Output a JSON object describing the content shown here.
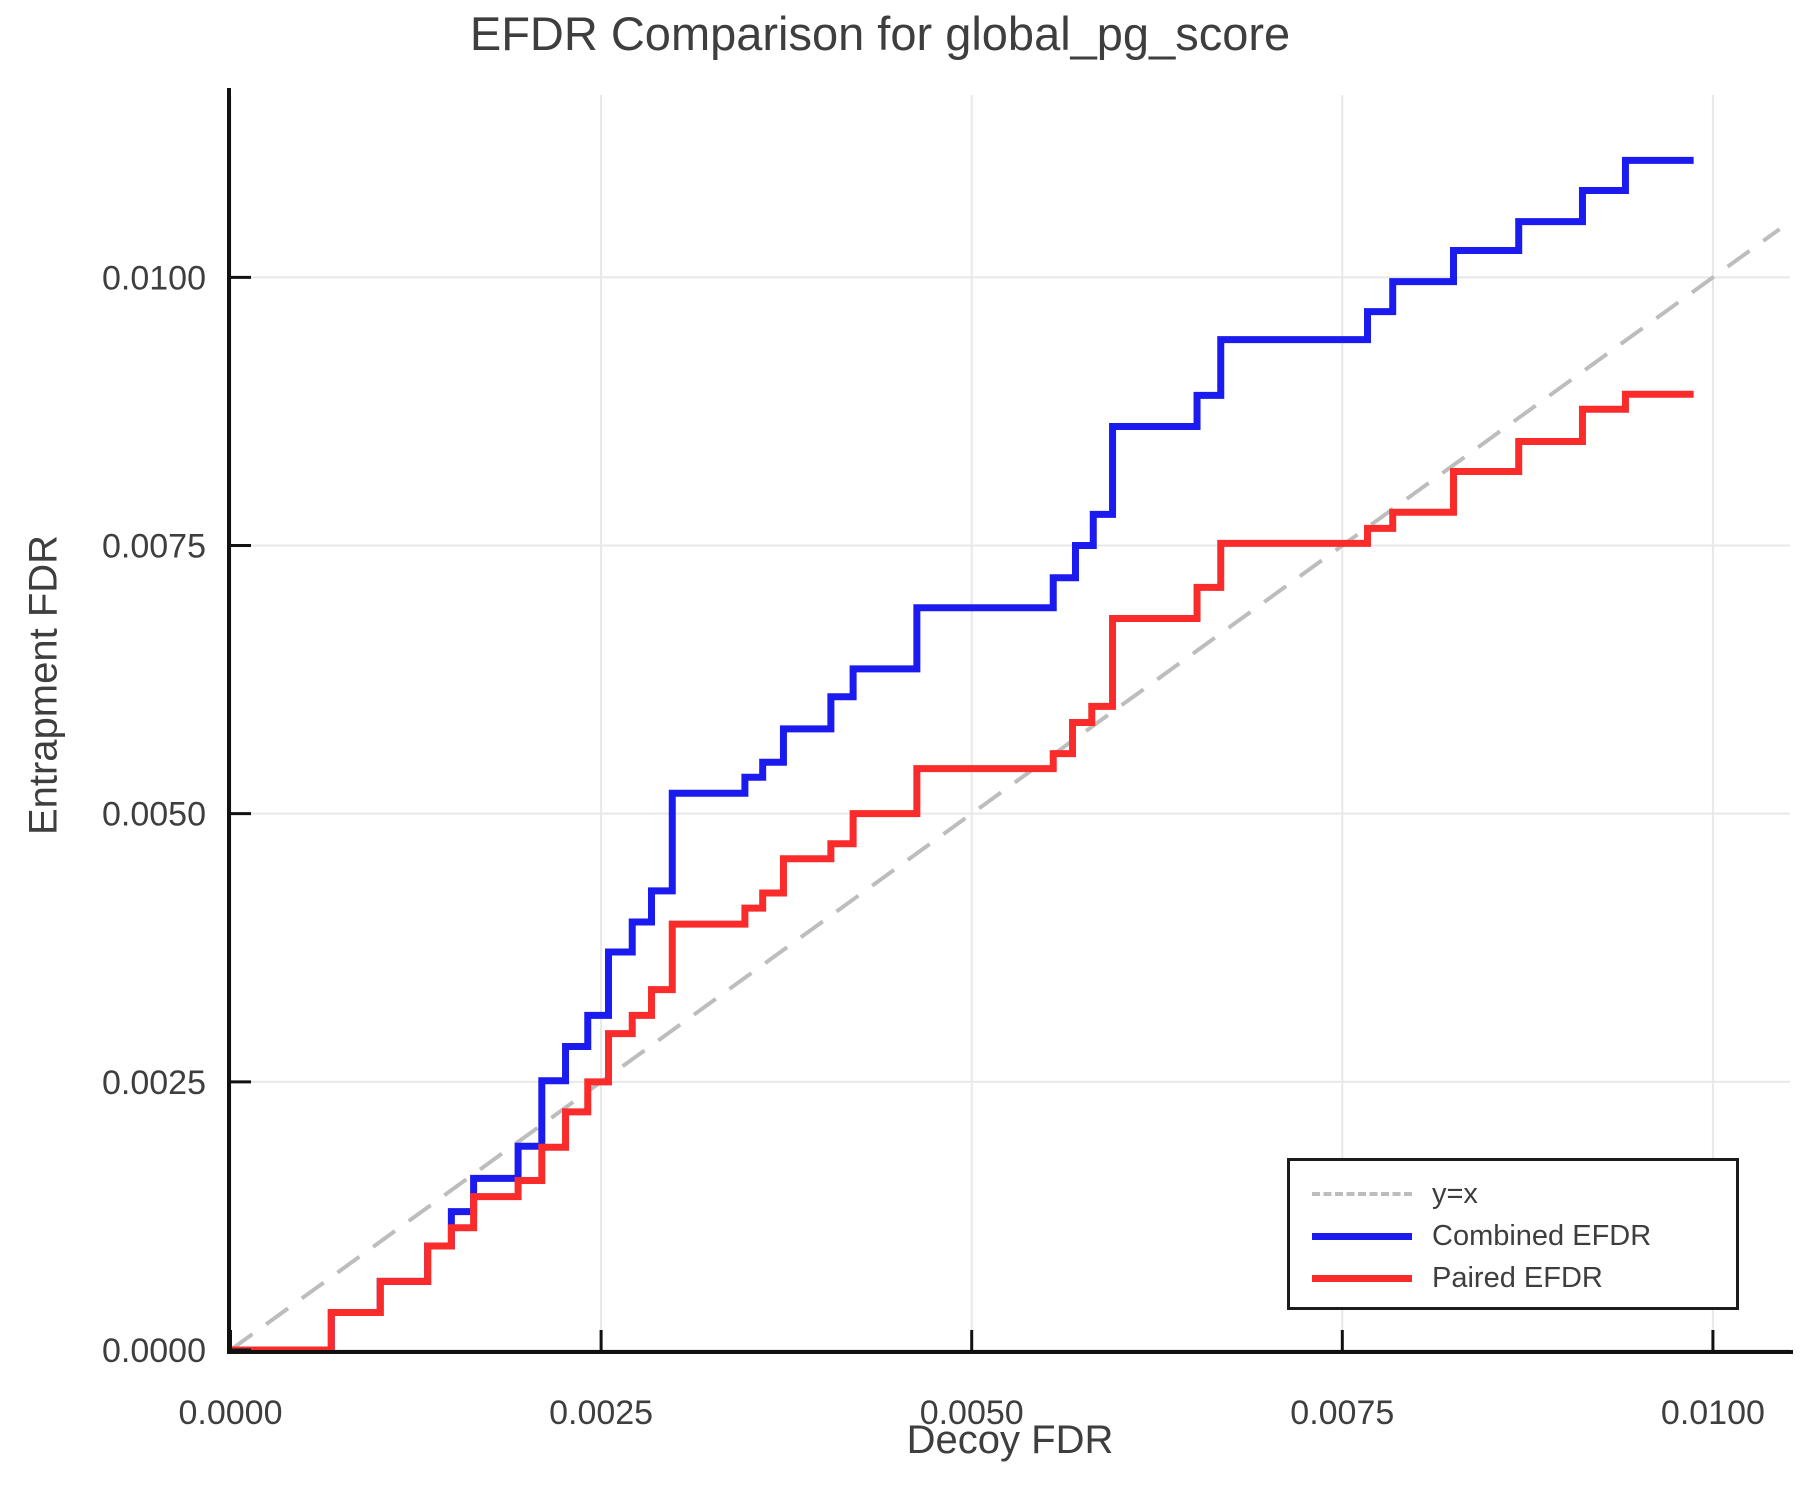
{
  "title": "EFDR Comparison for global_pg_score",
  "x_axis": {
    "label": "Decoy FDR",
    "ticks": [
      0.0,
      0.0025,
      0.005,
      0.0075,
      0.01
    ],
    "tick_labels": [
      "0.0000",
      "0.0025",
      "0.0050",
      "0.0075",
      "0.0100"
    ],
    "range": [
      0.0,
      0.01052
    ]
  },
  "y_axis": {
    "label": "Entrapment FDR",
    "ticks": [
      0.0,
      0.0025,
      0.005,
      0.0075,
      0.01
    ],
    "tick_labels": [
      "0.0000",
      "0.0025",
      "0.0050",
      "0.0075",
      "0.0100"
    ],
    "range": [
      0.0,
      0.0117
    ]
  },
  "legend": {
    "items": [
      {
        "label": "y=x",
        "color": "#bdbdbd",
        "style": "dashed"
      },
      {
        "label": "Combined EFDR",
        "color": "#1b1bef",
        "style": "solid"
      },
      {
        "label": "Paired EFDR",
        "color": "#f92b2b",
        "style": "solid"
      }
    ]
  },
  "colors": {
    "combined": "#1b1bef",
    "paired": "#f92b2b",
    "identity": "#bdbdbd",
    "grid": "#e8e8e8",
    "spine": "#111111",
    "text": "#3e3e3e"
  },
  "chart_data": {
    "type": "line",
    "title": "EFDR Comparison for global_pg_score",
    "xlabel": "Decoy FDR",
    "ylabel": "Entrapment FDR",
    "xlim": [
      0.0,
      0.01052
    ],
    "ylim": [
      0.0,
      0.0117
    ],
    "grid": true,
    "legend_position": "lower right",
    "series": [
      {
        "name": "y=x",
        "style": "dashed",
        "color": "#bdbdbd",
        "points": [
          [
            0.0,
            0.0
          ],
          [
            0.01045,
            0.01045
          ]
        ]
      },
      {
        "name": "Combined EFDR",
        "style": "step",
        "color": "#1b1bef",
        "points": [
          [
            0.0,
            0.0
          ],
          [
            0.00068,
            0.00035
          ],
          [
            0.00101,
            0.00064
          ],
          [
            0.00133,
            0.00097
          ],
          [
            0.00149,
            0.00129
          ],
          [
            0.00164,
            0.0016
          ],
          [
            0.00194,
            0.0019
          ],
          [
            0.0021,
            0.00251
          ],
          [
            0.00226,
            0.00283
          ],
          [
            0.00241,
            0.00312
          ],
          [
            0.00255,
            0.00371
          ],
          [
            0.00271,
            0.00399
          ],
          [
            0.00284,
            0.00428
          ],
          [
            0.00298,
            0.00519
          ],
          [
            0.00347,
            0.00534
          ],
          [
            0.00359,
            0.00548
          ],
          [
            0.00373,
            0.00579
          ],
          [
            0.00405,
            0.00609
          ],
          [
            0.0042,
            0.00635
          ],
          [
            0.00463,
            0.00692
          ],
          [
            0.00555,
            0.0072
          ],
          [
            0.0057,
            0.0075
          ],
          [
            0.00582,
            0.00779
          ],
          [
            0.00595,
            0.00861
          ],
          [
            0.00652,
            0.0089
          ],
          [
            0.00668,
            0.00942
          ],
          [
            0.00767,
            0.00968
          ],
          [
            0.00784,
            0.00996
          ],
          [
            0.00825,
            0.01025
          ],
          [
            0.00869,
            0.01052
          ],
          [
            0.00912,
            0.01081
          ],
          [
            0.00941,
            0.01109
          ],
          [
            0.00987,
            0.01109
          ]
        ]
      },
      {
        "name": "Paired EFDR",
        "style": "step",
        "color": "#f92b2b",
        "points": [
          [
            0.0,
            0.0
          ],
          [
            0.00068,
            0.00035
          ],
          [
            0.00101,
            0.00064
          ],
          [
            0.00133,
            0.00097
          ],
          [
            0.00149,
            0.00114
          ],
          [
            0.00164,
            0.00143
          ],
          [
            0.00194,
            0.00158
          ],
          [
            0.0021,
            0.00189
          ],
          [
            0.00226,
            0.00222
          ],
          [
            0.00241,
            0.0025
          ],
          [
            0.00255,
            0.00295
          ],
          [
            0.00271,
            0.00312
          ],
          [
            0.00284,
            0.00336
          ],
          [
            0.00298,
            0.00397
          ],
          [
            0.00347,
            0.00412
          ],
          [
            0.00359,
            0.00426
          ],
          [
            0.00373,
            0.00458
          ],
          [
            0.00405,
            0.00472
          ],
          [
            0.0042,
            0.005
          ],
          [
            0.00463,
            0.00542
          ],
          [
            0.00555,
            0.00556
          ],
          [
            0.00568,
            0.00585
          ],
          [
            0.00581,
            0.006
          ],
          [
            0.00595,
            0.00682
          ],
          [
            0.00652,
            0.00711
          ],
          [
            0.00668,
            0.00752
          ],
          [
            0.00767,
            0.00766
          ],
          [
            0.00784,
            0.00781
          ],
          [
            0.00825,
            0.00819
          ],
          [
            0.00869,
            0.00847
          ],
          [
            0.00912,
            0.00877
          ],
          [
            0.00941,
            0.00891
          ],
          [
            0.00987,
            0.00891
          ]
        ]
      }
    ]
  }
}
